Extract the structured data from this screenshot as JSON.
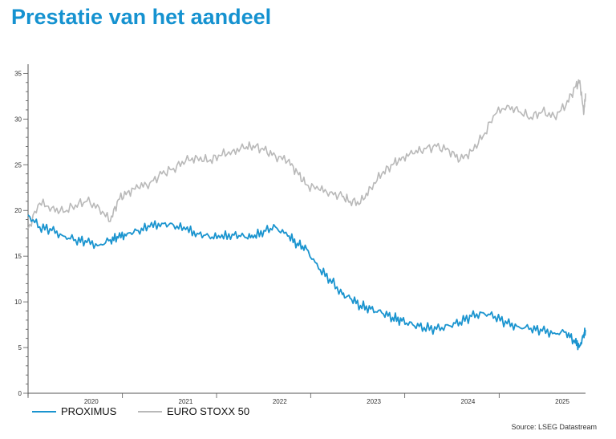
{
  "page": {
    "title": "Prestatie van het aandeel",
    "source": "Source: LSEG Datastream"
  },
  "chart_data": {
    "type": "line",
    "ylim": [
      0,
      36
    ],
    "yticks": [
      "0",
      "5",
      "10",
      "15",
      "20",
      "25",
      "30",
      "35"
    ],
    "xlim": [
      "2019-05-01",
      "2025-04-01"
    ],
    "x_tick_labels": [
      {
        "label": "2020",
        "date": "2020-01-01"
      },
      {
        "label": "2021",
        "date": "2021-01-01"
      },
      {
        "label": "2022",
        "date": "2022-01-01"
      },
      {
        "label": "2023",
        "date": "2023-01-01"
      },
      {
        "label": "2024",
        "date": "2024-01-01"
      },
      {
        "label": "2025",
        "date": "2025-01-01"
      }
    ],
    "x_boundaries": [
      "2019-05-01",
      "2020-05-01",
      "2021-05-01",
      "2022-05-01",
      "2023-05-01",
      "2024-05-01",
      "2025-05-01"
    ],
    "colors": {
      "PROXIMUS": "#1a94cf",
      "EURO STOXX 50": "#b9b9b9",
      "axis": "#555555"
    },
    "series": [
      {
        "name": "EURO STOXX 50",
        "x": [
          "2019-05-01",
          "2019-06-15",
          "2019-08-01",
          "2019-09-15",
          "2019-11-01",
          "2019-12-15",
          "2020-02-01",
          "2020-03-15",
          "2020-04-15",
          "2020-05-20",
          "2020-07-01",
          "2020-08-15",
          "2020-10-01",
          "2020-11-15",
          "2021-01-01",
          "2021-02-15",
          "2021-04-01",
          "2021-05-15",
          "2021-07-01",
          "2021-08-15",
          "2021-09-20",
          "2021-11-01",
          "2021-12-15",
          "2022-02-01",
          "2022-03-10",
          "2022-04-15",
          "2022-06-01",
          "2022-07-15",
          "2022-09-01",
          "2022-10-01",
          "2022-11-10",
          "2022-12-20",
          "2023-02-01",
          "2023-03-15",
          "2023-04-20",
          "2023-06-01",
          "2023-07-15",
          "2023-09-01",
          "2023-10-20",
          "2023-12-01",
          "2024-01-15",
          "2024-03-01",
          "2024-04-15",
          "2024-06-01",
          "2024-07-15",
          "2024-09-01",
          "2024-10-15",
          "2024-12-01",
          "2025-01-15",
          "2025-02-20",
          "2025-03-10",
          "2025-03-25",
          "2025-04-01"
        ],
        "values": [
          18.0,
          20.8,
          20.3,
          19.8,
          20.6,
          21.0,
          20.3,
          18.8,
          21.2,
          22.0,
          22.5,
          23.0,
          24.0,
          24.6,
          25.4,
          25.8,
          25.4,
          26.0,
          26.5,
          26.8,
          27.1,
          26.6,
          26.0,
          25.4,
          24.2,
          22.8,
          22.3,
          22.0,
          21.5,
          21.0,
          20.8,
          22.5,
          24.0,
          25.0,
          25.8,
          26.2,
          26.8,
          27.0,
          26.6,
          25.5,
          26.5,
          28.2,
          30.5,
          31.5,
          30.8,
          30.2,
          30.8,
          30.3,
          31.5,
          33.5,
          34.2,
          30.5,
          32.8
        ]
      },
      {
        "name": "PROXIMUS",
        "x": [
          "2019-05-01",
          "2019-06-15",
          "2019-08-01",
          "2019-09-15",
          "2019-11-01",
          "2019-12-15",
          "2020-02-01",
          "2020-03-15",
          "2020-04-15",
          "2020-05-20",
          "2020-07-01",
          "2020-08-15",
          "2020-10-01",
          "2020-11-15",
          "2021-01-01",
          "2021-02-15",
          "2021-04-01",
          "2021-05-15",
          "2021-07-01",
          "2021-08-15",
          "2021-09-20",
          "2021-11-01",
          "2021-12-15",
          "2022-02-01",
          "2022-03-10",
          "2022-04-15",
          "2022-06-01",
          "2022-07-15",
          "2022-09-01",
          "2022-10-01",
          "2022-11-10",
          "2022-12-20",
          "2023-02-01",
          "2023-03-15",
          "2023-04-20",
          "2023-06-01",
          "2023-07-15",
          "2023-09-01",
          "2023-10-20",
          "2023-12-01",
          "2024-01-15",
          "2024-03-01",
          "2024-04-15",
          "2024-06-01",
          "2024-07-15",
          "2024-09-01",
          "2024-10-15",
          "2024-12-01",
          "2025-01-15",
          "2025-02-20",
          "2025-03-10",
          "2025-03-25",
          "2025-04-01"
        ],
        "values": [
          19.5,
          18.2,
          17.8,
          17.2,
          16.8,
          16.5,
          16.2,
          16.8,
          17.0,
          17.5,
          17.8,
          18.2,
          18.6,
          18.4,
          17.9,
          17.5,
          17.2,
          17.0,
          17.4,
          17.2,
          17.0,
          17.8,
          18.2,
          17.2,
          16.4,
          15.8,
          13.6,
          12.5,
          10.8,
          10.4,
          9.6,
          9.2,
          8.8,
          8.3,
          7.9,
          7.5,
          7.2,
          7.0,
          7.4,
          7.8,
          8.4,
          8.8,
          8.4,
          7.6,
          7.3,
          7.1,
          6.8,
          6.6,
          6.7,
          5.5,
          5.2,
          6.4,
          6.8
        ]
      }
    ]
  }
}
